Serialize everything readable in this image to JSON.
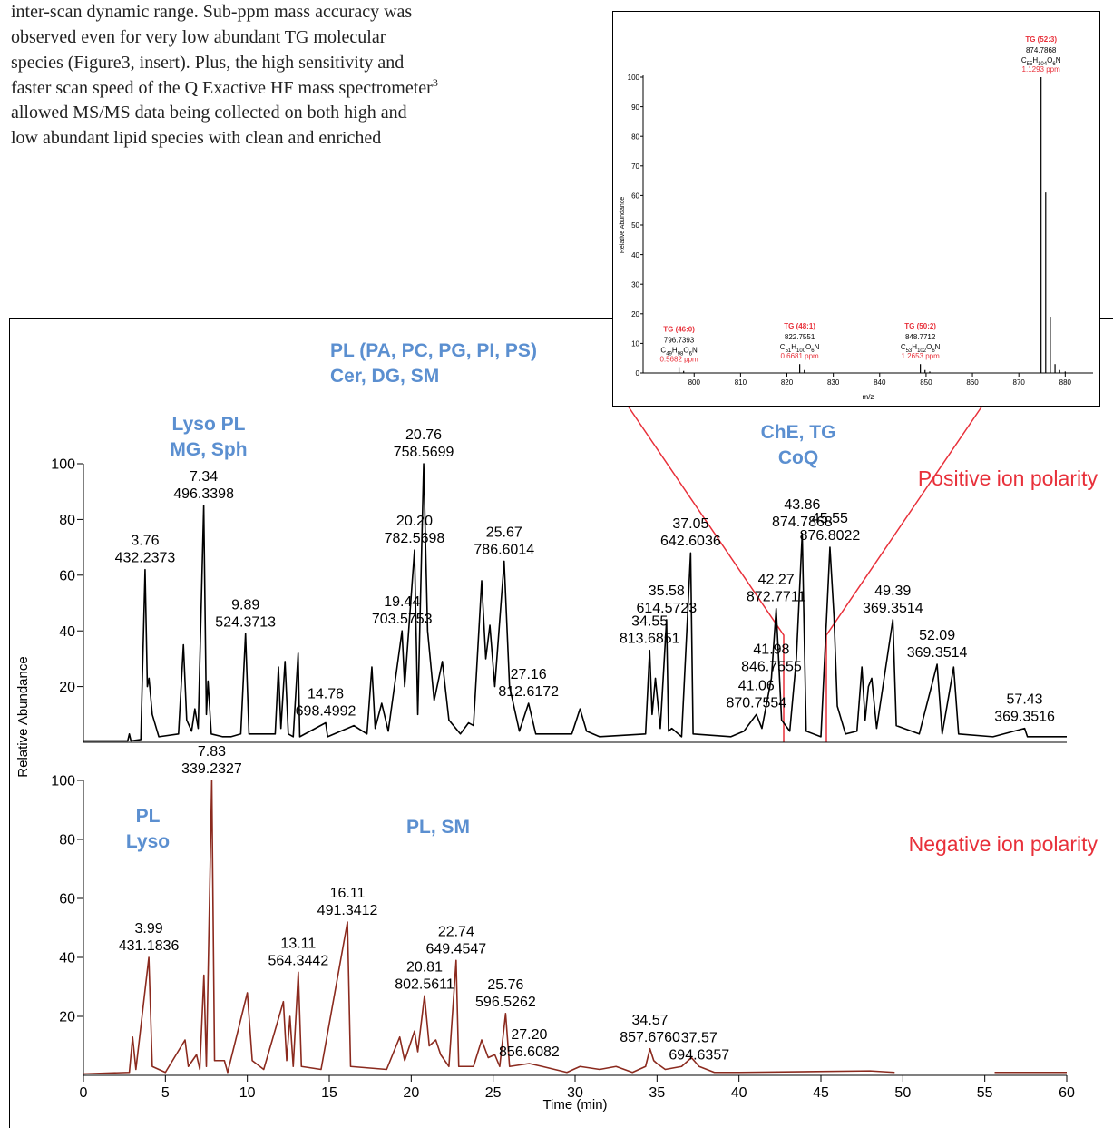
{
  "document": {
    "paragraph_lines": [
      "inter-scan dynamic range. Sub-ppm mass accuracy was",
      "observed even for very low abundant TG molecular",
      "species (Figure3, insert). Plus, the high sensitivity and",
      "faster scan speed of the Q Exactive HF mass spectrometer",
      "allowed MS/MS data being collected on both high and",
      "low abundant lipid species with clean and enriched"
    ],
    "footnote_ref": "3"
  },
  "chart_data": [
    {
      "type": "line",
      "polarity_label": "Positive ion polarity",
      "ylabel": "Relative Abundance",
      "class_labels": [
        [
          "Lyso PL",
          "MG, Sph"
        ],
        [
          "PL (PA, PC, PG, PI, PS)",
          "Cer, DG, SM"
        ],
        [
          "ChE, TG",
          "CoQ"
        ]
      ],
      "color": "#000000",
      "xlim": [
        0,
        60
      ],
      "ylim": [
        0,
        100
      ],
      "yticks": [
        20,
        40,
        60,
        80,
        100
      ],
      "x": [
        0,
        2.7,
        2.8,
        2.9,
        3.5,
        3.76,
        3.9,
        4.0,
        4.2,
        4.6,
        5.8,
        6.1,
        6.3,
        6.6,
        6.8,
        7.0,
        7.34,
        7.5,
        7.6,
        7.8,
        8.5,
        9.0,
        9.6,
        9.89,
        10.1,
        11.7,
        11.9,
        12.05,
        12.3,
        12.5,
        12.8,
        13.1,
        13.2,
        14.78,
        14.9,
        16.5,
        17.3,
        17.6,
        17.8,
        18.2,
        18.6,
        19.44,
        19.6,
        20.2,
        20.4,
        20.76,
        21.0,
        21.4,
        21.9,
        22.3,
        23.0,
        23.5,
        23.8,
        24.3,
        24.55,
        24.8,
        25.1,
        25.67,
        26.0,
        26.6,
        27.16,
        27.6,
        29.8,
        30.3,
        30.7,
        31.5,
        34.3,
        34.55,
        34.7,
        34.9,
        35.2,
        35.58,
        35.7,
        35.9,
        36.5,
        37.05,
        37.2,
        39.5,
        40.3,
        41.06,
        41.4,
        41.98,
        42.27,
        42.6,
        43.1,
        43.5,
        43.86,
        44.1,
        45.0,
        45.55,
        45.8,
        46.0,
        46.5,
        47.2,
        47.5,
        47.7,
        47.9,
        48.1,
        48.4,
        49.39,
        49.6,
        51.0,
        52.09,
        52.4,
        53.1,
        53.4,
        55.5,
        57.43,
        57.6,
        60
      ],
      "values": [
        0.5,
        0.5,
        3,
        0.5,
        1,
        62,
        20,
        23,
        10,
        2,
        3,
        35,
        8,
        4,
        12,
        5,
        85,
        10,
        22,
        3,
        2,
        2,
        3,
        39,
        3,
        3,
        27,
        5,
        29,
        3,
        2,
        32,
        2,
        7,
        2,
        6,
        3,
        27,
        5,
        14,
        4,
        40,
        20,
        69,
        10,
        100,
        40,
        15,
        29,
        8,
        3,
        7,
        6,
        58,
        30,
        42,
        20,
        65,
        20,
        4,
        14,
        3,
        3,
        12,
        4,
        2,
        3,
        33,
        10,
        23,
        5,
        44,
        4,
        5,
        2,
        68,
        3,
        2,
        4,
        10,
        5,
        23,
        48,
        8,
        4,
        30,
        75,
        4,
        2,
        70,
        45,
        13,
        3,
        4,
        27,
        8,
        20,
        23,
        5,
        44,
        6,
        3,
        28,
        3,
        27,
        3,
        2,
        5,
        2,
        2
      ],
      "annotations": [
        {
          "x": 3.76,
          "y": 62,
          "text": [
            "3.76",
            "432.2373"
          ]
        },
        {
          "x": 7.34,
          "y": 85,
          "text": [
            "7.34",
            "496.3398"
          ]
        },
        {
          "x": 9.89,
          "y": 39,
          "text": [
            "9.89",
            "524.3713"
          ]
        },
        {
          "x": 14.78,
          "y": 7,
          "text": [
            "14.78",
            "698.4992"
          ]
        },
        {
          "x": 19.44,
          "y": 40,
          "text": [
            "19.44",
            "703.5753"
          ]
        },
        {
          "x": 20.2,
          "y": 69,
          "text": [
            "20.20",
            "782.5698"
          ]
        },
        {
          "x": 20.76,
          "y": 100,
          "text": [
            "20.76",
            "758.5699"
          ]
        },
        {
          "x": 25.67,
          "y": 65,
          "text": [
            "25.67",
            "786.6014"
          ]
        },
        {
          "x": 27.16,
          "y": 14,
          "text": [
            "27.16",
            "812.6172"
          ]
        },
        {
          "x": 34.55,
          "y": 33,
          "text": [
            "34.55",
            "813.6851"
          ]
        },
        {
          "x": 35.58,
          "y": 44,
          "text": [
            "35.58",
            "614.5723"
          ]
        },
        {
          "x": 37.05,
          "y": 68,
          "text": [
            "37.05",
            "642.6036"
          ]
        },
        {
          "x": 41.06,
          "y": 10,
          "text": [
            "41.06",
            "870.7554"
          ]
        },
        {
          "x": 41.98,
          "y": 23,
          "text": [
            "41.98",
            "846.7555"
          ]
        },
        {
          "x": 42.27,
          "y": 48,
          "text": [
            "42.27",
            "872.7711"
          ]
        },
        {
          "x": 43.86,
          "y": 75,
          "text": [
            "43.86",
            "874.7868"
          ]
        },
        {
          "x": 45.55,
          "y": 70,
          "text": [
            "45.55",
            "876.8022"
          ]
        },
        {
          "x": 49.39,
          "y": 44,
          "text": [
            "49.39",
            "369.3514"
          ]
        },
        {
          "x": 52.09,
          "y": 28,
          "text": [
            "52.09",
            "369.3514"
          ]
        },
        {
          "x": 57.43,
          "y": 5,
          "text": [
            "57.43",
            "369.3516"
          ]
        }
      ]
    },
    {
      "type": "line",
      "polarity_label": "Negative ion polarity",
      "xlabel": "Time (min)",
      "class_labels": [
        [
          "PL",
          "Lyso"
        ],
        [
          "PL, SM"
        ]
      ],
      "color": "#8b2a1e",
      "xlim": [
        0,
        60
      ],
      "ylim": [
        0,
        100
      ],
      "yticks": [
        20,
        40,
        60,
        80,
        100
      ],
      "xticks": [
        0,
        5,
        10,
        15,
        20,
        25,
        30,
        35,
        40,
        45,
        50,
        55,
        60
      ],
      "x": [
        0,
        2.8,
        3.0,
        3.2,
        3.99,
        4.2,
        5.0,
        6.2,
        6.4,
        6.9,
        7.1,
        7.35,
        7.5,
        7.83,
        8.0,
        8.6,
        8.8,
        10.0,
        10.3,
        11.0,
        12.2,
        12.4,
        12.6,
        12.8,
        13.11,
        13.3,
        14.5,
        16.11,
        16.3,
        18.5,
        19.3,
        19.6,
        20.2,
        20.4,
        20.81,
        21.1,
        21.5,
        21.8,
        22.3,
        22.74,
        22.9,
        23.8,
        24.3,
        24.7,
        25.1,
        25.4,
        25.76,
        26.0,
        27.2,
        28.0,
        29.5,
        30.3,
        31.5,
        32.5,
        33.5,
        34.3,
        34.57,
        34.8,
        35.0,
        35.5,
        36.5,
        37.1,
        37.57,
        38.5,
        40,
        48,
        49.5,
        49.6,
        55.6,
        60
      ],
      "values": [
        0.5,
        1,
        13,
        2,
        40,
        3,
        1,
        12,
        3,
        7,
        2,
        34,
        3,
        100,
        5,
        5,
        1,
        28,
        5,
        2,
        25,
        5,
        20,
        3,
        35,
        3,
        2,
        52,
        3,
        2,
        13,
        5,
        15,
        8,
        27,
        10,
        12,
        7,
        3,
        39,
        3,
        3,
        12,
        6,
        7,
        3,
        21,
        3,
        4,
        3,
        1,
        3,
        2,
        3,
        1,
        3,
        9,
        5,
        4,
        2,
        3,
        6,
        3,
        1,
        1,
        1.5,
        1,
        null,
        1,
        1
      ],
      "annotations": [
        {
          "x": 3.99,
          "y": 40,
          "text": [
            "3.99",
            "431.1836"
          ]
        },
        {
          "x": 7.83,
          "y": 100,
          "text": [
            "7.83",
            "339.2327"
          ]
        },
        {
          "x": 13.11,
          "y": 35,
          "text": [
            "13.11",
            "564.3442"
          ]
        },
        {
          "x": 16.11,
          "y": 52,
          "text": [
            "16.11",
            "491.3412"
          ]
        },
        {
          "x": 20.81,
          "y": 27,
          "text": [
            "20.81",
            "802.5611"
          ]
        },
        {
          "x": 22.74,
          "y": 39,
          "text": [
            "22.74",
            "649.4547"
          ]
        },
        {
          "x": 25.76,
          "y": 21,
          "text": [
            "25.76",
            "596.5262"
          ]
        },
        {
          "x": 27.2,
          "y": 4,
          "text": [
            "27.20",
            "856.6082"
          ]
        },
        {
          "x": 34.57,
          "y": 9,
          "text": [
            "34.57",
            "857.6760"
          ]
        },
        {
          "x": 37.57,
          "y": 3,
          "text": [
            "37.57",
            "694.6357"
          ]
        }
      ]
    },
    {
      "type": "stem",
      "ylabel": "Relative Abundance",
      "xlabel": "m/z",
      "color": "#000000",
      "xlim": [
        789,
        886
      ],
      "ylim": [
        0,
        100
      ],
      "yticks": [
        0,
        10,
        20,
        30,
        40,
        50,
        60,
        70,
        80,
        90,
        100
      ],
      "xticks": [
        800,
        810,
        820,
        830,
        840,
        850,
        860,
        870,
        880
      ],
      "x": [
        796.74,
        797.74,
        822.76,
        823.76,
        848.77,
        849.77,
        850.8,
        874.79,
        875.79,
        876.79,
        877.8,
        878.8,
        880
      ],
      "values": [
        2,
        0.7,
        3,
        1,
        3,
        1,
        0.5,
        100,
        61,
        19,
        3,
        1,
        0.5
      ],
      "annotations": [
        {
          "x": 796.7393,
          "y": 2,
          "name": "TG (46:0)",
          "mz": "796.7393",
          "formula": "C49H98O6N",
          "ppm": "0.5682 ppm"
        },
        {
          "x": 822.7551,
          "y": 3,
          "name": "TG (48:1)",
          "mz": "822.7551",
          "formula": "C51H100O6N",
          "ppm": "0.6681 ppm"
        },
        {
          "x": 848.7712,
          "y": 3,
          "name": "TG (50:2)",
          "mz": "848.7712",
          "formula": "C53H102O6N",
          "ppm": "1.2653 ppm"
        },
        {
          "x": 874.7868,
          "y": 100,
          "name": "TG (52:3)",
          "mz": "874.7868",
          "formula": "C55H104O6N",
          "ppm": "1.1293 ppm"
        }
      ]
    }
  ]
}
